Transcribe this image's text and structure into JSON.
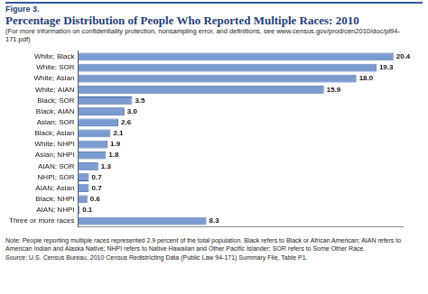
{
  "chart_data": {
    "type": "bar",
    "figure": "Figure 3.",
    "title": "Percentage Distribution of People Who Reported Multiple Races: 2010",
    "subtitle": "(For more information on confidentiality protection, nonsampling error, and definitions, see www.census.gov/prod/cen2010/doc/pl94-171.pdf)",
    "note": "Note: People reporting multiple races represented 2.9 percent of the total population. Black refers to Black or African American; AIAN refers to American Indian and Alaska Native; NHPI refers to Native Hawaiian and Other Pacific Islander; SOR refers to Some Other Race.",
    "source": "Source: U.S. Census Bureau, 2010 Census Redistricting Data (Public Law 94-171) Summary File, Table P1.",
    "orientation": "horizontal",
    "categories": [
      "White; Black",
      "White; SOR",
      "White; Asian",
      "White; AIAN",
      "Black; SOR",
      "Black; AIAN",
      "Asian; SOR",
      "Black; Asian",
      "White; NHPI",
      "Asian; NHPI",
      "AIAN; SOR",
      "NHPI; SOR",
      "AIAN; Asian",
      "Black; NHPI",
      "AIAN; NHPI",
      "Three or more races"
    ],
    "values": [
      20.4,
      19.3,
      18.0,
      15.9,
      3.5,
      3.0,
      2.6,
      2.1,
      1.9,
      1.8,
      1.3,
      0.7,
      0.7,
      0.6,
      0.1,
      8.3
    ],
    "value_labels": [
      "20.4",
      "19.3",
      "18.0",
      "15.9",
      "3.5",
      "3.0",
      "2.6",
      "2.1",
      "1.9",
      "1.8",
      "1.3",
      "0.7",
      "0.7",
      "0.6",
      "0.1",
      "8.3"
    ],
    "color": "#7b9bd1",
    "xlim": [
      0,
      21
    ],
    "data_labels": true,
    "tick_labels": "y",
    "grid": false
  }
}
